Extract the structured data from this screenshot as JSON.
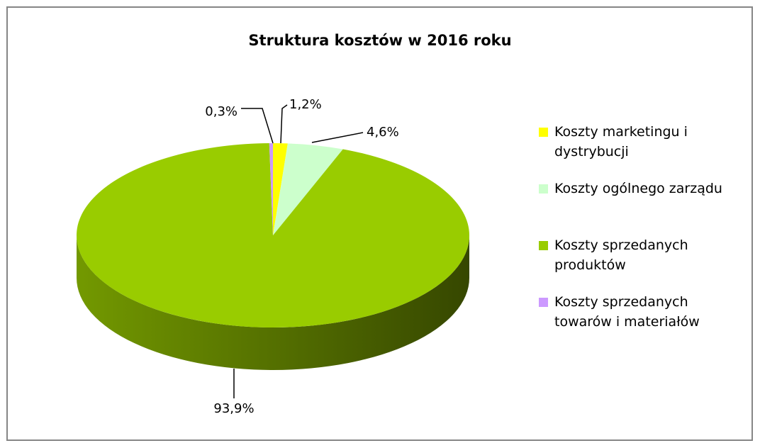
{
  "chart_data": {
    "type": "pie",
    "title": "Struktura kosztów w 2016 roku",
    "categories": [
      "Koszty marketingu i dystrybucji",
      "Koszty ogólnego zarządu",
      "Koszty sprzedanych produktów",
      "Koszty sprzedanych towarów i materiałów"
    ],
    "values": [
      1.2,
      4.6,
      93.9,
      0.3
    ],
    "value_labels": [
      "1,2%",
      "4,6%",
      "93,9%",
      "0,3%"
    ],
    "colors": [
      "#ffff00",
      "#ccffcc",
      "#99cc00",
      "#cc99ff"
    ],
    "legend": "right"
  }
}
